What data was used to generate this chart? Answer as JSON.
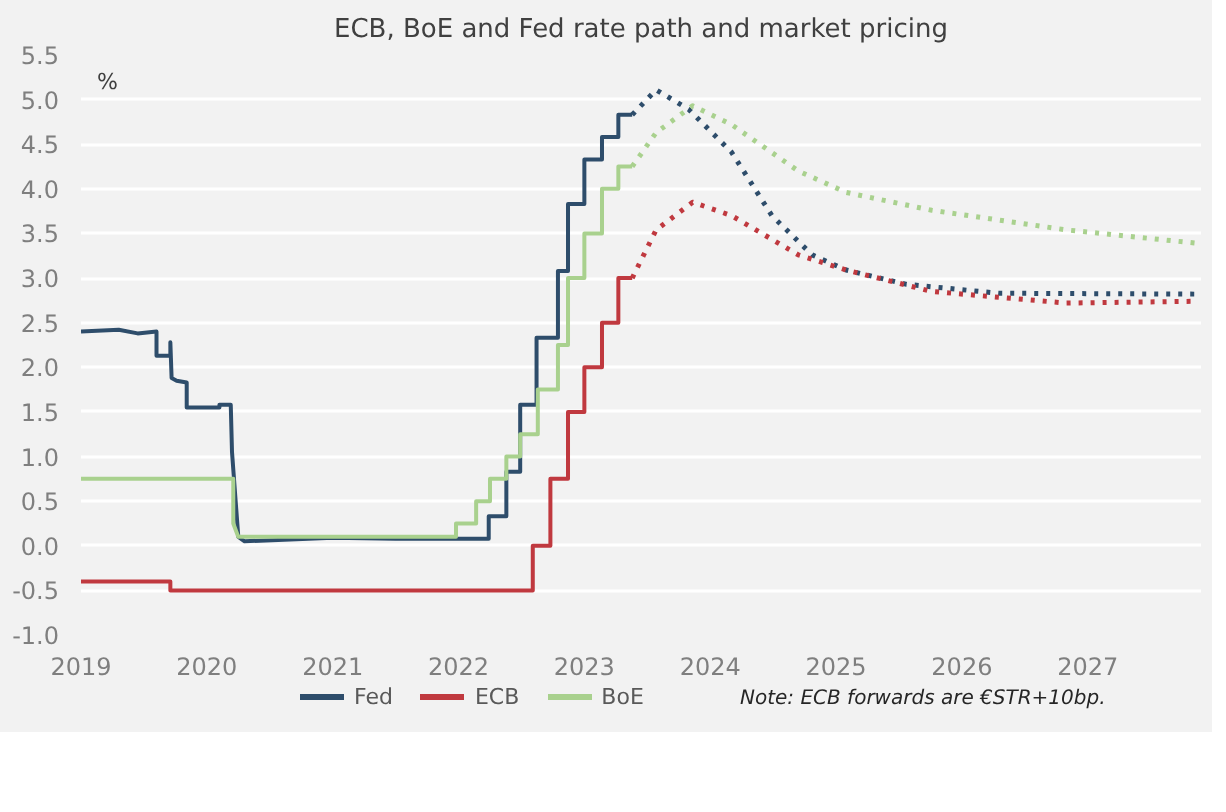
{
  "chart_data": {
    "type": "line",
    "title": "ECB, BoE and Fed rate path and market pricing",
    "ylabel": "%",
    "annotations": [
      "Note: ECB forwards are €STR+10bp."
    ],
    "xlim": [
      2019,
      2027.9
    ],
    "xticks": [
      2019,
      2020,
      2021,
      2022,
      2023,
      2024,
      2025,
      2026,
      2027
    ],
    "ylim": [
      -1.0,
      5.5
    ],
    "yticks": [
      {
        "value": -1.0,
        "label": "-1.0"
      },
      {
        "value": -0.5,
        "label": "-0.5"
      },
      {
        "value": 0,
        "label": "0.0"
      },
      {
        "value": 0.5,
        "label": "0.5"
      },
      {
        "value": 1.0,
        "label": "1.0"
      },
      {
        "value": 1.5,
        "label": "1.5"
      },
      {
        "value": 2.0,
        "label": "2.0"
      },
      {
        "value": 2.5,
        "label": "2.5"
      },
      {
        "value": 3.0,
        "label": "3.0"
      },
      {
        "value": 3.5,
        "label": "3.5"
      },
      {
        "value": 4.0,
        "label": "4.0"
      },
      {
        "value": 4.5,
        "label": "4.5"
      },
      {
        "value": 5.0,
        "label": "5.0"
      },
      {
        "value": 5.5,
        "label": "5.5"
      }
    ],
    "grid": "y",
    "legend": "bottom",
    "series": [
      {
        "name": "Fed",
        "color": "#2e4d6b",
        "line_style": "solid",
        "x": [
          2019.0,
          2019.3,
          2019.45,
          2019.6,
          2019.6,
          2019.71,
          2019.71,
          2019.72,
          2019.76,
          2019.84,
          2019.84,
          2020.1,
          2020.1,
          2020.19,
          2020.2,
          2020.25,
          2020.3,
          2021.0,
          2021.5,
          2022.24,
          2022.24,
          2022.38,
          2022.38,
          2022.49,
          2022.49,
          2022.62,
          2022.62,
          2022.79,
          2022.79,
          2022.87,
          2022.87,
          2023.0,
          2023.0,
          2023.14,
          2023.14,
          2023.27,
          2023.27,
          2023.38
        ],
        "values": [
          2.4,
          2.42,
          2.38,
          2.4,
          2.13,
          2.13,
          2.28,
          1.88,
          1.85,
          1.83,
          1.55,
          1.55,
          1.58,
          1.58,
          1.05,
          0.1,
          0.05,
          0.09,
          0.08,
          0.08,
          0.33,
          0.33,
          0.83,
          0.83,
          1.58,
          1.58,
          2.33,
          2.33,
          3.08,
          3.08,
          3.83,
          3.83,
          4.33,
          4.33,
          4.58,
          4.58,
          4.83,
          4.83
        ]
      },
      {
        "color": "#2e4d6b",
        "line_style": "dotted",
        "x": [
          2023.38,
          2023.57,
          2023.83,
          2024.17,
          2024.49,
          2024.81,
          2025.08,
          2025.56,
          2026.29,
          2027.87
        ],
        "values": [
          4.83,
          5.11,
          4.89,
          4.41,
          3.7,
          3.26,
          3.09,
          2.93,
          2.83,
          2.82
        ]
      },
      {
        "name": "ECB",
        "color": "#c0393f",
        "line_style": "solid",
        "x": [
          2019.0,
          2019.71,
          2019.71,
          2022.59,
          2022.59,
          2022.73,
          2022.73,
          2022.87,
          2022.87,
          2023.0,
          2023.0,
          2023.14,
          2023.14,
          2023.27,
          2023.27,
          2023.38
        ],
        "values": [
          -0.4,
          -0.4,
          -0.5,
          -0.5,
          0.0,
          0.0,
          0.75,
          0.75,
          1.5,
          1.5,
          2.0,
          2.0,
          2.5,
          2.5,
          3.0,
          3.0
        ]
      },
      {
        "color": "#c0393f",
        "line_style": "dotted",
        "x": [
          2023.38,
          2023.57,
          2023.86,
          2024.17,
          2024.7,
          2025.08,
          2025.76,
          2026.83,
          2027.87
        ],
        "values": [
          3.0,
          3.54,
          3.85,
          3.7,
          3.26,
          3.09,
          2.85,
          2.72,
          2.74
        ]
      },
      {
        "name": "BoE",
        "color": "#a9d18e",
        "line_style": "solid",
        "x": [
          2019.0,
          2020.21,
          2020.21,
          2020.25,
          2021.98,
          2021.98,
          2022.14,
          2022.14,
          2022.25,
          2022.25,
          2022.38,
          2022.38,
          2022.49,
          2022.49,
          2022.63,
          2022.63,
          2022.79,
          2022.79,
          2022.87,
          2022.87,
          2023.0,
          2023.0,
          2023.14,
          2023.14,
          2023.27,
          2023.27,
          2023.38
        ],
        "values": [
          0.75,
          0.75,
          0.25,
          0.1,
          0.1,
          0.25,
          0.25,
          0.5,
          0.5,
          0.75,
          0.75,
          1.0,
          1.0,
          1.25,
          1.25,
          1.75,
          1.75,
          2.25,
          2.25,
          3.0,
          3.0,
          3.5,
          3.5,
          4.0,
          4.0,
          4.25,
          4.25
        ]
      },
      {
        "color": "#a9d18e",
        "line_style": "dotted",
        "x": [
          2023.38,
          2023.57,
          2023.86,
          2024.17,
          2024.7,
          2025.08,
          2025.76,
          2026.83,
          2027.87
        ],
        "values": [
          4.25,
          4.63,
          4.93,
          4.72,
          4.2,
          3.96,
          3.76,
          3.54,
          3.39
        ]
      }
    ]
  }
}
